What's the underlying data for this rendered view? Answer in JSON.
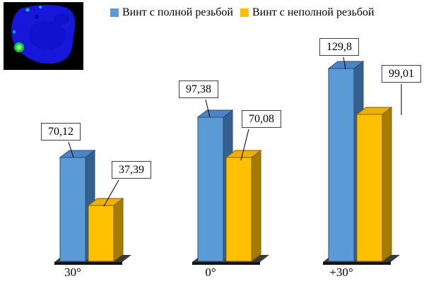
{
  "chart_data": {
    "type": "bar",
    "style": "3d-clustered",
    "title": "",
    "categories": [
      "30°",
      "0°",
      "+30°"
    ],
    "series": [
      {
        "name": "Винт с полной резьбой",
        "color": "#5B9BD5",
        "values": [
          70.12,
          97.38,
          129.8
        ],
        "data_labels": [
          "70,12",
          "97,38",
          "129,8"
        ]
      },
      {
        "name": "Винт с неполной резьбой",
        "color": "#FFC000",
        "values": [
          37.39,
          70.08,
          99.01
        ],
        "data_labels": [
          "37,39",
          "70,08",
          "99,01"
        ]
      }
    ],
    "ylim": [
      0,
      140
    ],
    "grid": false,
    "legend_position": "top",
    "axis_visible": false
  },
  "thumbnail": {
    "type": "fea-stress-plot",
    "background": "#000000",
    "body_color": "#1717DC",
    "hotspot_color": "#00CC44"
  }
}
